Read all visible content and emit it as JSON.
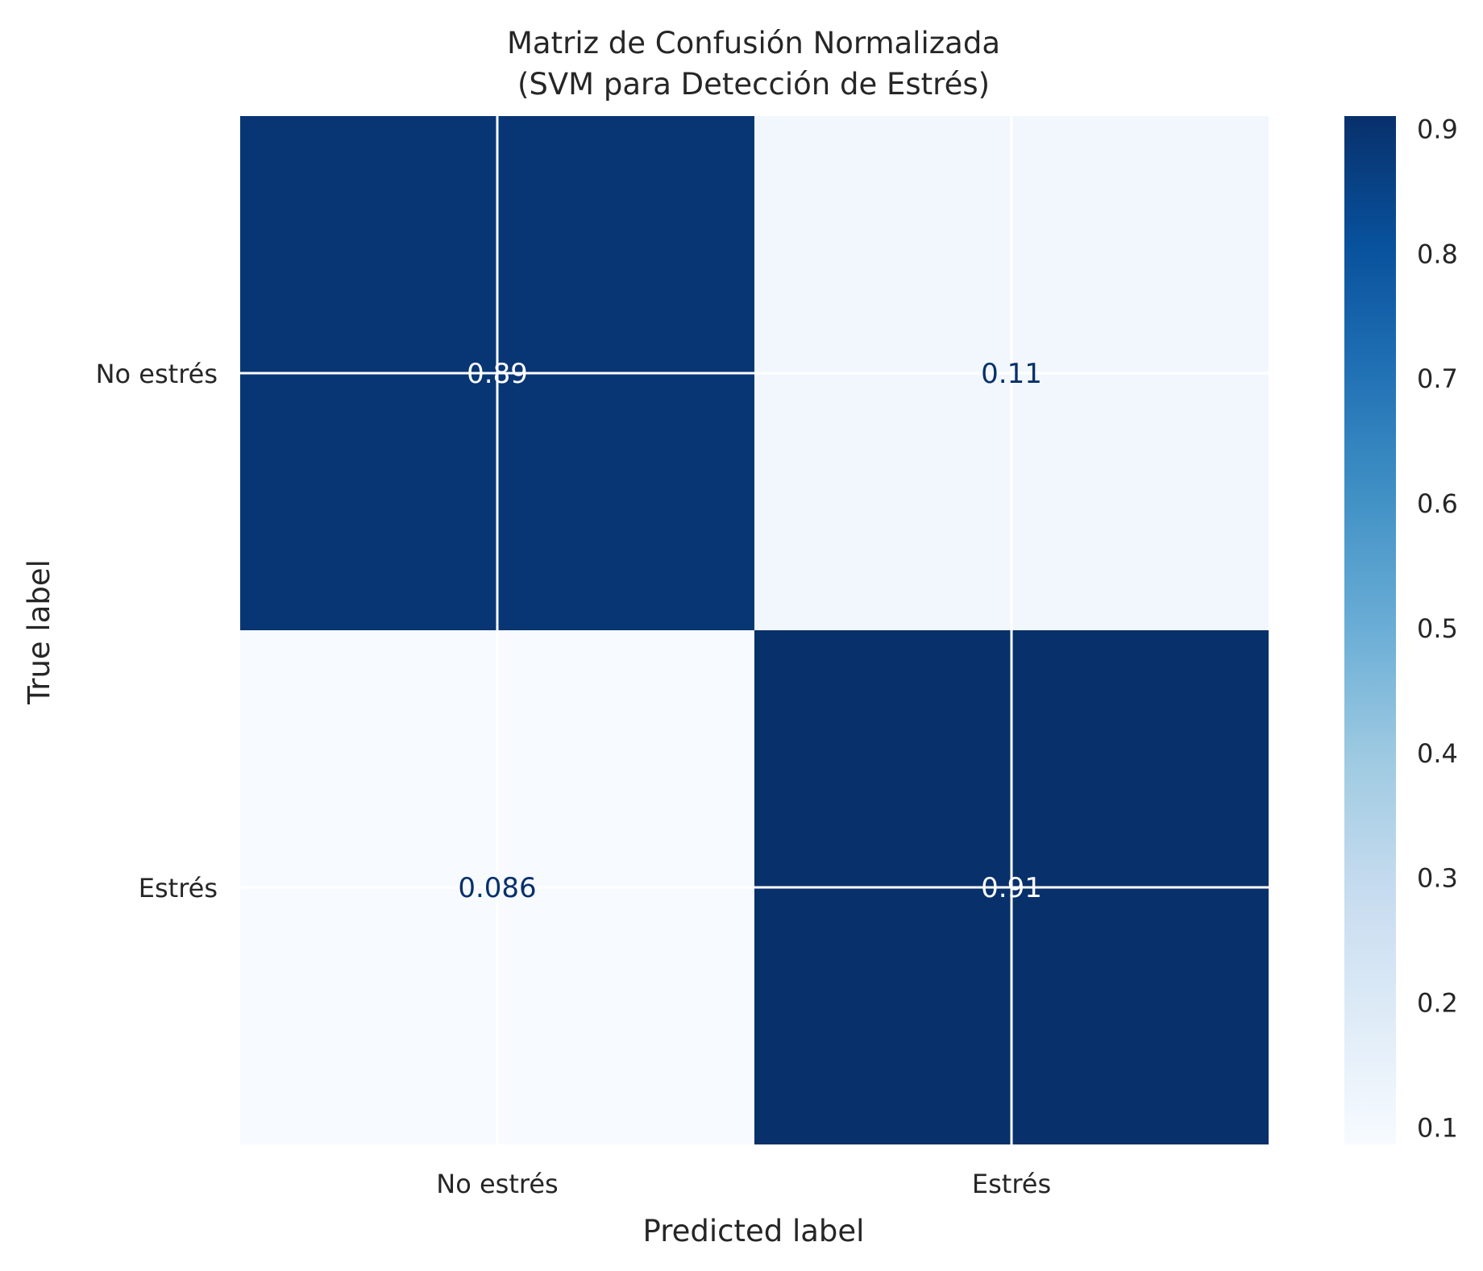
{
  "chart_data": {
    "type": "heatmap",
    "title_line1": "Matriz de Confusión Normalizada",
    "title_line2": "(SVM para Detección de Estrés)",
    "xlabel": "Predicted label",
    "ylabel": "True label",
    "x_categories": [
      "No estrés",
      "Estrés"
    ],
    "y_categories": [
      "No estrés",
      "Estrés"
    ],
    "matrix": [
      [
        0.89,
        0.11
      ],
      [
        0.086,
        0.91
      ]
    ],
    "cell_labels": [
      [
        "0.89",
        "0.11"
      ],
      [
        "0.086",
        "0.91"
      ]
    ],
    "colormap": "Blues",
    "colorbar": {
      "min": 0.086,
      "max": 0.91,
      "ticks": [
        0.1,
        0.2,
        0.3,
        0.4,
        0.5,
        0.6,
        0.7,
        0.8,
        0.9
      ]
    },
    "grid": true
  }
}
